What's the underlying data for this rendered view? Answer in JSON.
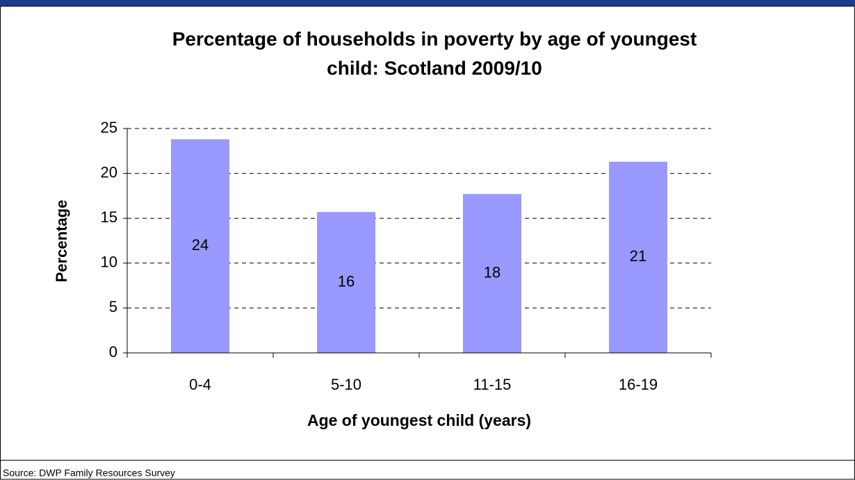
{
  "chart_data": {
    "type": "bar",
    "title": [
      "Percentage of households in poverty by age of youngest",
      "child: Scotland 2009/10"
    ],
    "x_label": "Age of youngest child (years)",
    "y_label": "Percentage",
    "categories": [
      "0-4",
      "5-10",
      "11-15",
      "16-19"
    ],
    "values": [
      23.8,
      15.7,
      17.7,
      21.3
    ],
    "value_labels": [
      "24",
      "16",
      "18",
      "21"
    ],
    "color": "#9999ff",
    "ylim": [
      0,
      25
    ],
    "yticks": [
      0,
      5,
      10,
      15,
      20,
      25
    ],
    "grid": true,
    "source": "Source: DWP Family Resources Survey"
  }
}
